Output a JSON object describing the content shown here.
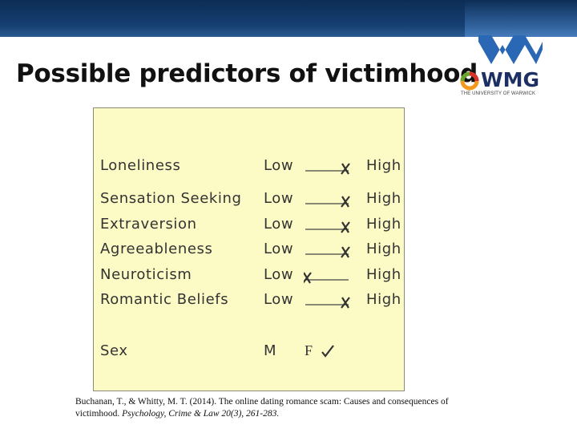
{
  "slide": {
    "title": "Possible predictors of victimhood"
  },
  "logo": {
    "text": "WMG",
    "subtext": "THE UNIVERSITY OF WARWICK"
  },
  "figure": {
    "scale_low_label": "Low",
    "scale_high_label": "High",
    "rows": [
      {
        "trait": "Loneliness",
        "mark_position": "high"
      },
      {
        "trait": "Sensation Seeking",
        "mark_position": "high"
      },
      {
        "trait": "Extraversion",
        "mark_position": "high"
      },
      {
        "trait": "Agreeableness",
        "mark_position": "high"
      },
      {
        "trait": "Neuroticism",
        "mark_position": "low"
      },
      {
        "trait": "Romantic Beliefs",
        "mark_position": "high"
      }
    ],
    "sex": {
      "label": "Sex",
      "male_label": "M",
      "female_label": "F",
      "selected": "F"
    }
  },
  "citation": {
    "plain": "Buchanan, T., & Whitty, M. T. (2014). The online dating romance scam: Causes and consequences of victimhood. ",
    "italic": "Psychology, Crime & Law 20(3), 261-283."
  },
  "colors": {
    "header_bar": "#163f72",
    "figure_background": "#fcfbc6",
    "logo_blue": "#1d2f63",
    "logo_orange": "#f39a1e"
  }
}
